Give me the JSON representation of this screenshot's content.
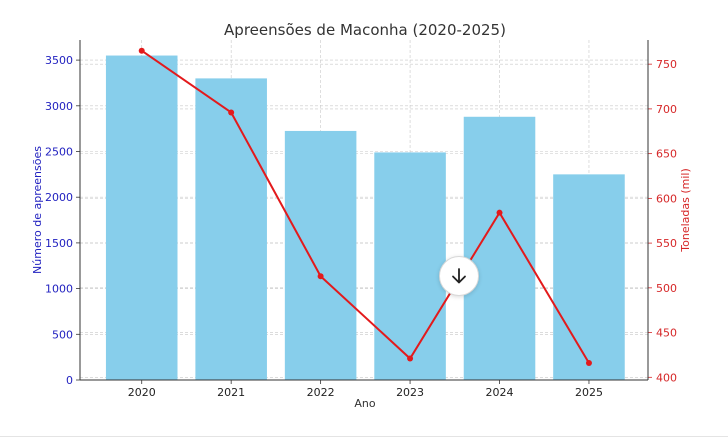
{
  "colors": {
    "bar": "#87CEEB",
    "line": "#E31A1C",
    "left_axis_text": "#1f1fbf",
    "right_axis_text": "#d62728",
    "grid": "#c8c8c8"
  },
  "chart_data": {
    "type": "bar",
    "title": "Apreensões de Maconha (2020-2025)",
    "xlabel": "Ano",
    "categories": [
      "2020",
      "2021",
      "2022",
      "2023",
      "2024",
      "2025"
    ],
    "series": [
      {
        "type": "bar",
        "axis": "left",
        "values": [
          3550,
          3300,
          2725,
          2490,
          2880,
          2250
        ]
      },
      {
        "type": "line",
        "axis": "right",
        "values": [
          765,
          696,
          513,
          421,
          584,
          416
        ]
      }
    ],
    "y_left": {
      "label": "Número de apreensões",
      "range": [
        0,
        3720
      ],
      "ticks": [
        "0",
        "500",
        "1000",
        "1500",
        "2000",
        "2500",
        "3000",
        "3500"
      ]
    },
    "y_right": {
      "label": "Toneladas (mil)",
      "range": [
        397,
        777
      ],
      "ticks": [
        "400",
        "450",
        "500",
        "550",
        "600",
        "650",
        "700",
        "750"
      ]
    },
    "grid": true,
    "legend": "none"
  },
  "scroll_button": {
    "icon": "arrow-down-icon"
  }
}
